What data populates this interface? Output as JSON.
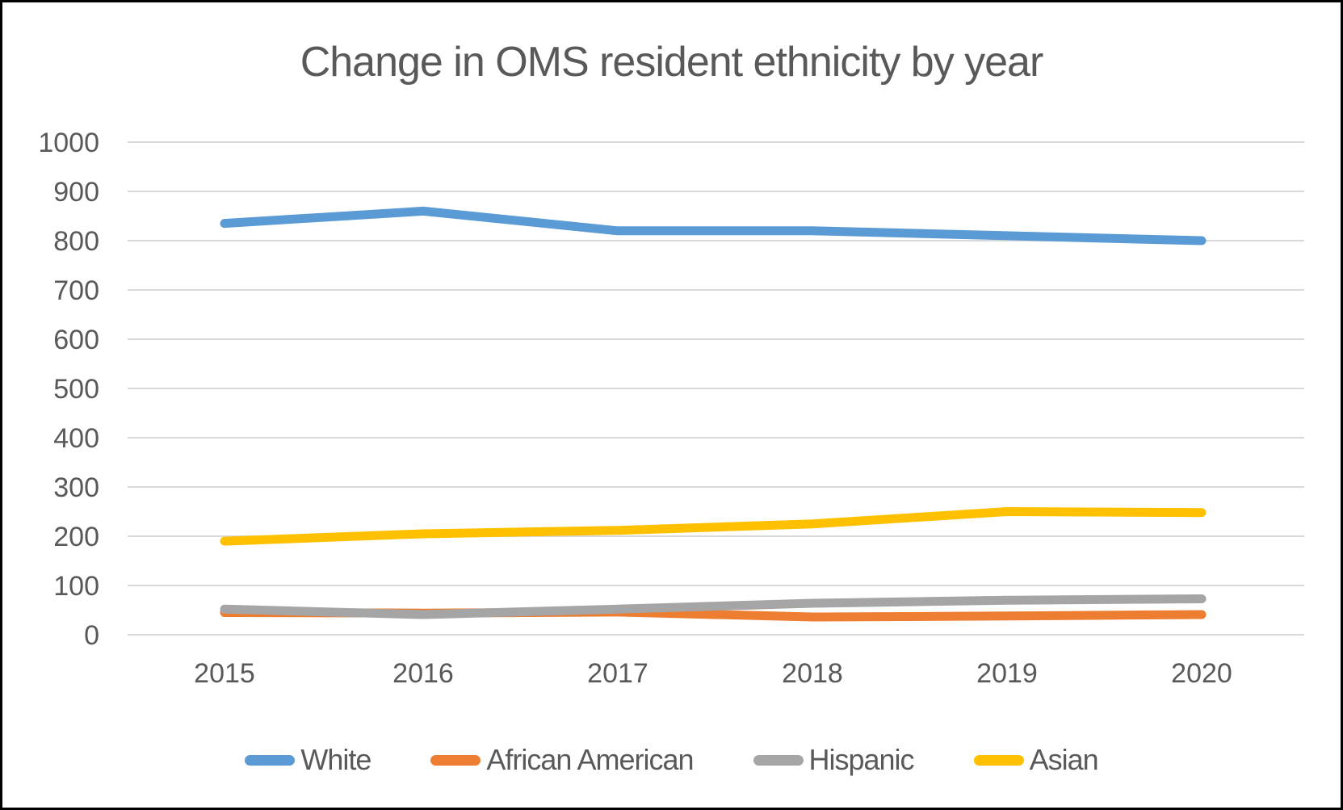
{
  "chart_data": {
    "type": "line",
    "title": "Change in OMS resident ethnicity by year",
    "xlabel": "",
    "ylabel": "",
    "x": [
      2015,
      2016,
      2017,
      2018,
      2019,
      2020
    ],
    "series": [
      {
        "name": "White",
        "color": "#5B9BD5",
        "values": [
          835,
          860,
          820,
          820,
          810,
          800
        ]
      },
      {
        "name": "African American",
        "color": "#ED7D31",
        "values": [
          45,
          44,
          46,
          36,
          38,
          41
        ]
      },
      {
        "name": "Hispanic",
        "color": "#A5A5A5",
        "values": [
          52,
          41,
          52,
          64,
          70,
          73
        ]
      },
      {
        "name": "Asian",
        "color": "#FFC000",
        "values": [
          190,
          205,
          212,
          225,
          250,
          248
        ]
      }
    ],
    "ylim": [
      0,
      1000
    ],
    "ytick_step": 100,
    "grid": true,
    "legend_position": "bottom",
    "text_color": "#595959",
    "gridline_color": "#D9D9D9"
  }
}
